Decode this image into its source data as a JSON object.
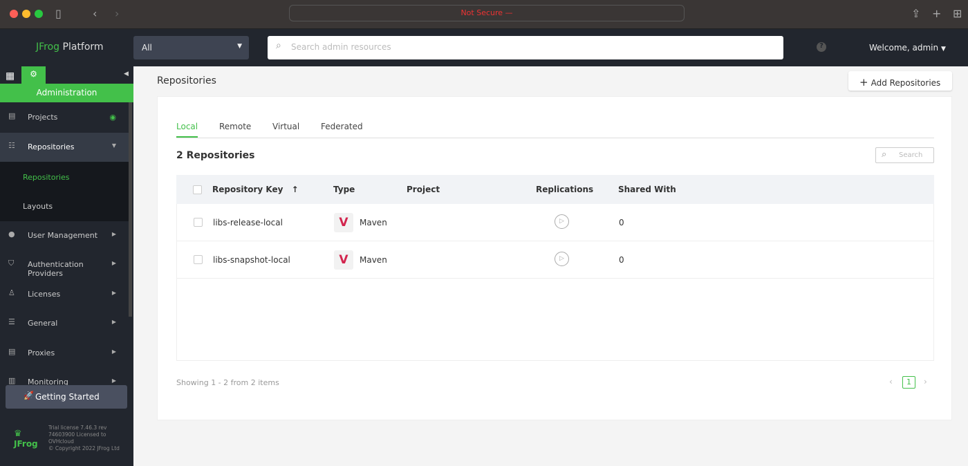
{
  "browser": {
    "url_text": "Not Secure —"
  },
  "header": {
    "logo_brand": "JFrog",
    "logo_product": "Platform",
    "scope": "All",
    "search_placeholder": "Search admin resources",
    "welcome": "Welcome, admin"
  },
  "sidebar": {
    "section": "Administration",
    "items": [
      {
        "label": "Projects"
      },
      {
        "label": "Repositories"
      },
      {
        "label": "User Management"
      },
      {
        "label": "Authentication Providers"
      },
      {
        "label": "Licenses"
      },
      {
        "label": "General"
      },
      {
        "label": "Proxies"
      },
      {
        "label": "Monitoring"
      }
    ],
    "subitems": [
      {
        "label": "Repositories"
      },
      {
        "label": "Layouts"
      }
    ],
    "getting_started": "Getting Started",
    "license": "Trial license 7.46.3 rev 74603900 Licensed to OVHcloud",
    "copyright": "© Copyright 2022 JFrog Ltd",
    "footer_logo": "JFrog"
  },
  "page": {
    "title": "Repositories",
    "add_button": "Add Repositories",
    "tabs": [
      "Local",
      "Remote",
      "Virtual",
      "Federated"
    ],
    "count": "2 Repositories",
    "search_placeholder": "Search",
    "columns": [
      "Repository Key",
      "Type",
      "Project",
      "Replications",
      "Shared With"
    ],
    "rows": [
      {
        "key": "libs-release-local",
        "type": "Maven",
        "project": "",
        "shared": "0"
      },
      {
        "key": "libs-snapshot-local",
        "type": "Maven",
        "project": "",
        "shared": "0"
      }
    ],
    "pagination": {
      "summary": "Showing 1 - 2 from 2 items",
      "current": "1"
    }
  },
  "colors": {
    "accent": "#43c04a",
    "sidebar": "#22262e"
  }
}
